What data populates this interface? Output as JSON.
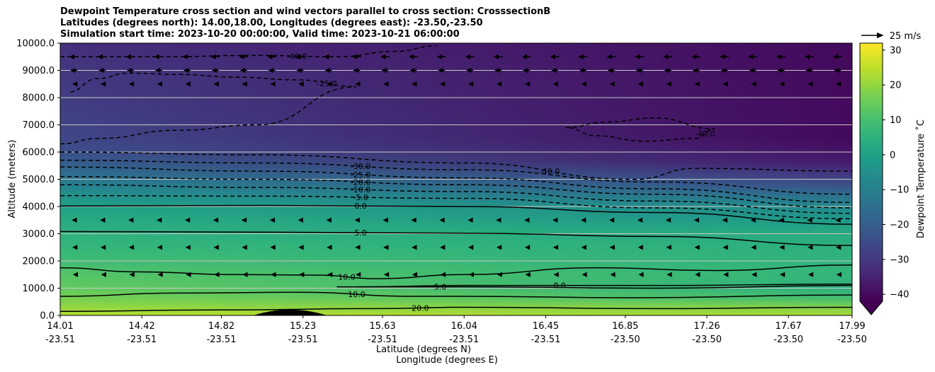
{
  "chart_data": {
    "type": "heatmap",
    "title_lines": [
      "Dewpoint Temperature cross section and wind vectors parallel to cross section: CrosssectionB",
      "Latitudes (degrees north): 14.00,18.00, Longitudes (degrees east): -23.50,-23.50",
      "Simulation start time: 2023-10-20 00:00:00, Valid time: 2023-10-21 06:00:00"
    ],
    "ylabel": "Altitude (meters)",
    "xlabel_lines": [
      "Latitude (degrees N)",
      "Longitude (degrees E)"
    ],
    "ylim": [
      0,
      10000
    ],
    "y_ticks": [
      {
        "value": 0,
        "label": "0.0"
      },
      {
        "value": 1000,
        "label": "1000.0"
      },
      {
        "value": 2000,
        "label": "2000.0"
      },
      {
        "value": 3000,
        "label": "3000.0"
      },
      {
        "value": 4000,
        "label": "4000.0"
      },
      {
        "value": 5000,
        "label": "5000.0"
      },
      {
        "value": 6000,
        "label": "6000.0"
      },
      {
        "value": 7000,
        "label": "7000.0"
      },
      {
        "value": 8000,
        "label": "8000.0"
      },
      {
        "value": 9000,
        "label": "9000.0"
      },
      {
        "value": 10000,
        "label": "10000.0"
      }
    ],
    "xlim": [
      14.01,
      17.99
    ],
    "x_ticks": [
      {
        "value": 14.01,
        "lat": "14.01",
        "lon": "-23.51"
      },
      {
        "value": 14.42,
        "lat": "14.42",
        "lon": "-23.51"
      },
      {
        "value": 14.82,
        "lat": "14.82",
        "lon": "-23.51"
      },
      {
        "value": 15.23,
        "lat": "15.23",
        "lon": "-23.51"
      },
      {
        "value": 15.63,
        "lat": "15.63",
        "lon": "-23.51"
      },
      {
        "value": 16.04,
        "lat": "16.04",
        "lon": "-23.51"
      },
      {
        "value": 16.45,
        "lat": "16.45",
        "lon": "-23.51"
      },
      {
        "value": 16.85,
        "lat": "16.85",
        "lon": "-23.50"
      },
      {
        "value": 17.26,
        "lat": "17.26",
        "lon": "-23.50"
      },
      {
        "value": 17.67,
        "lat": "17.67",
        "lon": "-23.50"
      },
      {
        "value": 17.99,
        "lat": "17.99",
        "lon": "-23.50"
      }
    ],
    "colorbar": {
      "label": "Dewpoint Temperature ˚C",
      "range": [
        -42,
        32
      ],
      "extend": "min",
      "ticks": [
        {
          "value": -40,
          "label": "−40"
        },
        {
          "value": -30,
          "label": "−30"
        },
        {
          "value": -20,
          "label": "−20"
        },
        {
          "value": -10,
          "label": "−10"
        },
        {
          "value": 0,
          "label": "0"
        },
        {
          "value": 10,
          "label": "10"
        },
        {
          "value": 20,
          "label": "20"
        },
        {
          "value": 30,
          "label": "30"
        }
      ]
    },
    "quiver_key": {
      "label": "25 m/s",
      "speed_ms": 25
    },
    "grid": "horizontal",
    "dewpoint_layers": [
      {
        "z": 10000,
        "left": -32,
        "right": -40
      },
      {
        "z": 9000,
        "left": -30,
        "right": -40
      },
      {
        "z": 7500,
        "left": -28,
        "right": -40
      },
      {
        "z": 6500,
        "left": -26,
        "right": -40
      },
      {
        "z": 6000,
        "left": -24,
        "right": -38
      },
      {
        "z": 5600,
        "left": -20,
        "right": -36
      },
      {
        "z": 5200,
        "left": -15,
        "right": -30
      },
      {
        "z": 4800,
        "left": -9,
        "right": -24
      },
      {
        "z": 4400,
        "left": -4,
        "right": -15
      },
      {
        "z": 4000,
        "left": 0,
        "right": -7
      },
      {
        "z": 3500,
        "left": 3,
        "right": -2
      },
      {
        "z": 3000,
        "left": 5,
        "right": 3
      },
      {
        "z": 2500,
        "left": 7,
        "right": 5
      },
      {
        "z": 2000,
        "left": 9,
        "right": 6
      },
      {
        "z": 1500,
        "left": 12,
        "right": 7
      },
      {
        "z": 1000,
        "left": 14,
        "right": 5
      },
      {
        "z": 600,
        "left": 17,
        "right": 10
      },
      {
        "z": 300,
        "left": 20,
        "right": 18
      },
      {
        "z": 0,
        "left": 24,
        "right": 22
      }
    ],
    "contours": [
      {
        "level": 20.0,
        "label": "20.0",
        "dashed": false,
        "x": [
          14.01,
          14.8,
          15.6,
          16.04,
          17.0,
          17.99
        ],
        "y": [
          150,
          200,
          250,
          300,
          250,
          300
        ]
      },
      {
        "level": 10.0,
        "label": "10.0",
        "dashed": false,
        "x": [
          14.01,
          14.6,
          15.2,
          15.8,
          16.04,
          16.9,
          17.99
        ],
        "y": [
          700,
          820,
          850,
          700,
          700,
          650,
          750
        ]
      },
      {
        "level": 5.0,
        "label": "5.0",
        "dashed": false,
        "x": [
          15.4,
          15.8,
          16.04,
          17.0,
          17.99
        ],
        "y": [
          1050,
          1050,
          1050,
          1000,
          1100
        ]
      },
      {
        "level": 0.0,
        "label": "0.0",
        "dashed": false,
        "x": [
          15.5,
          16.04,
          17.0,
          17.99
        ],
        "y": [
          1050,
          1100,
          1100,
          1150
        ]
      },
      {
        "level": 10.0,
        "label": "10.0",
        "dashed": false,
        "x": [
          14.01,
          14.4,
          14.9,
          15.3,
          15.6,
          16.04,
          16.7,
          17.3,
          17.99
        ],
        "y": [
          1750,
          1600,
          1500,
          1480,
          1350,
          1500,
          1750,
          1650,
          1850
        ]
      },
      {
        "level": 5.0,
        "label": "5.0",
        "dashed": false,
        "x": [
          14.01,
          15.0,
          16.04,
          17.0,
          17.99
        ],
        "y": [
          3080,
          3060,
          3020,
          2900,
          2570
        ]
      },
      {
        "level": 0.0,
        "label": "0.0",
        "dashed": false,
        "x": [
          14.01,
          15.0,
          16.04,
          17.0,
          17.99
        ],
        "y": [
          4020,
          4040,
          4000,
          3780,
          3350
        ]
      },
      {
        "level": -5.0,
        "label": "-5.0",
        "dashed": true,
        "x": [
          14.01,
          15.0,
          16.04,
          17.0,
          17.99
        ],
        "y": [
          4400,
          4380,
          4300,
          3950,
          3550
        ]
      },
      {
        "level": -10.0,
        "label": "-10.0",
        "dashed": true,
        "x": [
          14.01,
          15.0,
          16.04,
          17.0,
          17.99
        ],
        "y": [
          4800,
          4700,
          4550,
          4200,
          3750
        ]
      },
      {
        "level": -20.0,
        "label": "-20.0",
        "dashed": true,
        "x": [
          14.01,
          15.0,
          16.04,
          17.0,
          17.99
        ],
        "y": [
          5100,
          5000,
          4800,
          4450,
          3950
        ]
      },
      {
        "level": -25.0,
        "label": "-25.0",
        "dashed": true,
        "x": [
          14.01,
          15.0,
          16.04,
          17.0,
          17.99
        ],
        "y": [
          5450,
          5300,
          5050,
          4650,
          4150
        ]
      },
      {
        "level": -30.0,
        "label": "-30.0",
        "dashed": true,
        "x": [
          14.01,
          15.0,
          16.04,
          17.0,
          17.99
        ],
        "y": [
          5700,
          5600,
          5350,
          4900,
          4450
        ]
      },
      {
        "level": -40.0,
        "label": "-40.0",
        "dashed": true,
        "x": [
          14.01,
          15.0,
          16.04,
          16.9,
          17.2,
          17.99
        ],
        "y": [
          6000,
          5900,
          5600,
          5000,
          5400,
          5300
        ]
      },
      {
        "level": -25.0,
        "label": "-25.0",
        "dashed": true,
        "x": [
          14.01,
          14.2,
          14.6,
          15.0,
          15.5,
          15.2,
          14.9,
          14.6,
          14.35,
          14.2,
          14.05
        ],
        "y": [
          6300,
          6500,
          6800,
          7000,
          8400,
          8650,
          8750,
          8850,
          8900,
          8700,
          8200
        ]
      },
      {
        "level": -40.0,
        "label": "-40.0",
        "dashed": true,
        "x": [
          14.01,
          14.5,
          15.0,
          15.4,
          15.7,
          15.9
        ],
        "y": [
          9500,
          9500,
          9550,
          9500,
          9700,
          9900
        ]
      },
      {
        "level": -40.0,
        "label": "-40.0",
        "dashed": true,
        "x": [
          16.55,
          16.75,
          17.0,
          17.3,
          17.2,
          16.95,
          16.7,
          16.55
        ],
        "y": [
          6900,
          7100,
          7250,
          6850,
          6500,
          6400,
          6600,
          6900
        ]
      }
    ],
    "winds": [
      {
        "z": 9500,
        "u": -8
      },
      {
        "z": 9000,
        "u": -6
      },
      {
        "z": 8500,
        "u": -2
      },
      {
        "z": 3500,
        "u": -3
      },
      {
        "z": 2500,
        "u": -2
      },
      {
        "z": 1500,
        "u": -1
      }
    ]
  }
}
